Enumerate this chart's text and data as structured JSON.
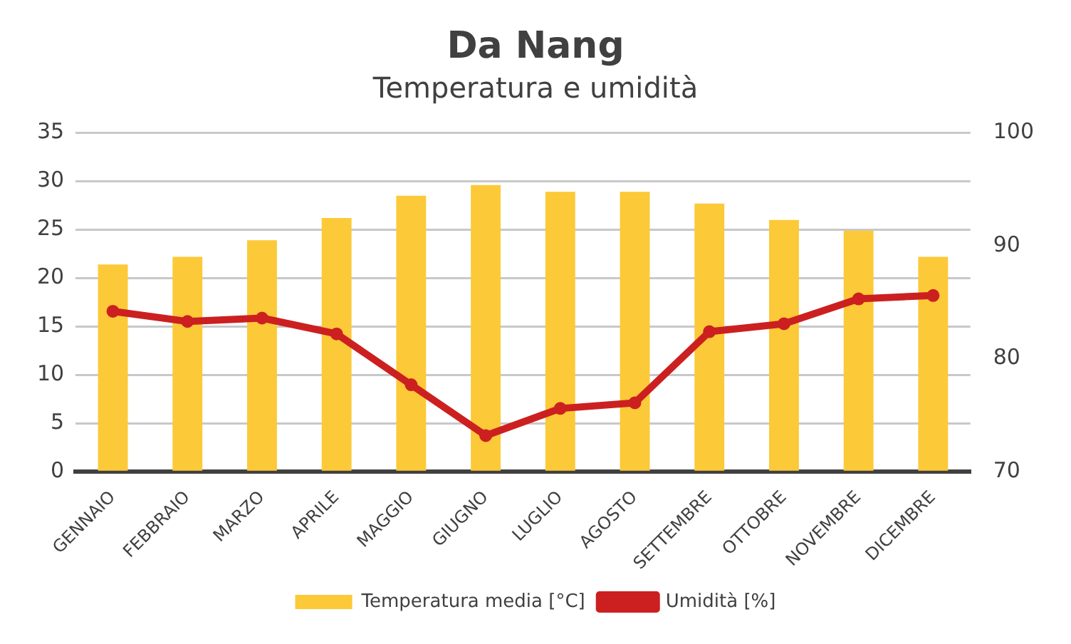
{
  "chart_data": {
    "type": "bar",
    "title": "Da Nang",
    "subtitle": "Temperatura e umidità",
    "categories": [
      "GENNAIO",
      "FEBBRAIO",
      "MARZO",
      "APRILE",
      "MAGGIO",
      "GIUGNO",
      "LUGLIO",
      "AGOSTO",
      "SETTEMBRE",
      "OTTOBRE",
      "NOVEMBRE",
      "DICEMBRE"
    ],
    "series": [
      {
        "name": "Temperatura media [°C]",
        "color": "#fcc938",
        "values": [
          21.4,
          22.2,
          23.9,
          26.2,
          28.5,
          29.6,
          28.9,
          28.9,
          27.7,
          26.0,
          24.9,
          22.2
        ]
      },
      {
        "name": "Umidità [%]",
        "type": "line",
        "axis": "y2",
        "color": "#cc2020",
        "marker": "circle",
        "values": [
          84.2,
          83.3,
          83.6,
          82.2,
          77.7,
          73.2,
          75.6,
          76.1,
          82.4,
          83.1,
          85.3,
          85.6
        ]
      }
    ],
    "ylim": [
      0,
      35
    ],
    "yticks": [
      0,
      5,
      10,
      15,
      20,
      25,
      30,
      35
    ],
    "y2lim": [
      70,
      100
    ],
    "y2ticks": [
      70,
      80,
      90,
      100
    ],
    "grid": "y",
    "legend": "bottom"
  }
}
